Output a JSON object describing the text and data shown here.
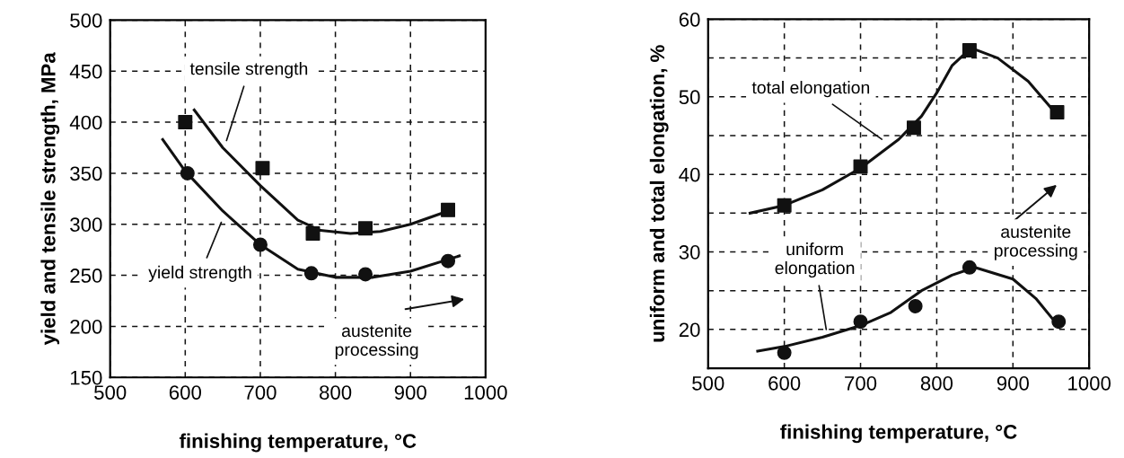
{
  "chart_data": [
    {
      "type": "scatter",
      "xlabel": "finishing temperature, °C",
      "ylabel": "yield and tensile strength, MPa",
      "xlim": [
        500,
        1000
      ],
      "ylim": [
        150,
        500
      ],
      "xticks": [
        500,
        600,
        700,
        800,
        900,
        1000
      ],
      "yticks": [
        150,
        200,
        250,
        300,
        350,
        400,
        450,
        500
      ],
      "grid": true,
      "legend": false,
      "series": [
        {
          "marker": "square",
          "color": "#111111",
          "x": [
            600,
            703,
            770,
            840,
            950
          ],
          "values": [
            400,
            355,
            291,
            296,
            314
          ]
        },
        {
          "marker": "circle",
          "color": "#111111",
          "x": [
            603,
            700,
            768,
            840,
            950
          ],
          "values": [
            350,
            280,
            252,
            251,
            264
          ]
        },
        {
          "type": "line",
          "marker": "none",
          "line_style": "solid",
          "color": "#111111",
          "x": [
            612,
            650,
            700,
            750,
            780,
            820,
            860,
            900,
            950
          ],
          "values": [
            412,
            375,
            338,
            304,
            294,
            291,
            293,
            300,
            313
          ]
        },
        {
          "type": "line",
          "marker": "none",
          "line_style": "solid",
          "color": "#111111",
          "x": [
            570,
            600,
            650,
            700,
            750,
            800,
            850,
            900,
            965
          ],
          "values": [
            383,
            352,
            313,
            280,
            256,
            248,
            248,
            254,
            269
          ]
        }
      ],
      "annotations": [
        "tensile strength",
        "yield strength",
        "austenite processing"
      ]
    },
    {
      "type": "scatter",
      "xlabel": "finishing temperature, °C",
      "ylabel": "uniform and total elongation, %",
      "xlim": [
        500,
        1000
      ],
      "ylim": [
        15,
        60
      ],
      "xticks": [
        500,
        600,
        700,
        800,
        900,
        1000
      ],
      "yticks": [
        20,
        {
          "value": 25,
          "label": null
        },
        30,
        {
          "value": 35,
          "label": null
        },
        40,
        {
          "value": 45,
          "label": null
        },
        50,
        {
          "value": 55,
          "label": null
        },
        60
      ],
      "grid": true,
      "legend": false,
      "series": [
        {
          "marker": "square",
          "color": "#111111",
          "x": [
            600,
            700,
            770,
            843,
            958
          ],
          "values": [
            36,
            41,
            46,
            56,
            48
          ]
        },
        {
          "marker": "circle",
          "color": "#111111",
          "x": [
            600,
            700,
            772,
            843,
            960
          ],
          "values": [
            17,
            21,
            23,
            28,
            21
          ]
        },
        {
          "type": "line",
          "marker": "none",
          "line_style": "solid",
          "color": "#111111",
          "x": [
            555,
            600,
            650,
            700,
            750,
            780,
            800,
            820,
            845,
            880,
            920,
            955
          ],
          "values": [
            35,
            36,
            38,
            40.8,
            44.5,
            47.5,
            50.5,
            54,
            56.3,
            55,
            52,
            48
          ]
        },
        {
          "type": "line",
          "marker": "none",
          "line_style": "solid",
          "color": "#111111",
          "x": [
            565,
            600,
            650,
            700,
            740,
            780,
            820,
            850,
            900,
            930,
            955
          ],
          "values": [
            17.2,
            17.8,
            19,
            20.5,
            22.2,
            25,
            27,
            28,
            26.5,
            24,
            21
          ]
        }
      ],
      "annotations": [
        "total elongation",
        "uniform elongation",
        "austenite processing"
      ]
    }
  ]
}
